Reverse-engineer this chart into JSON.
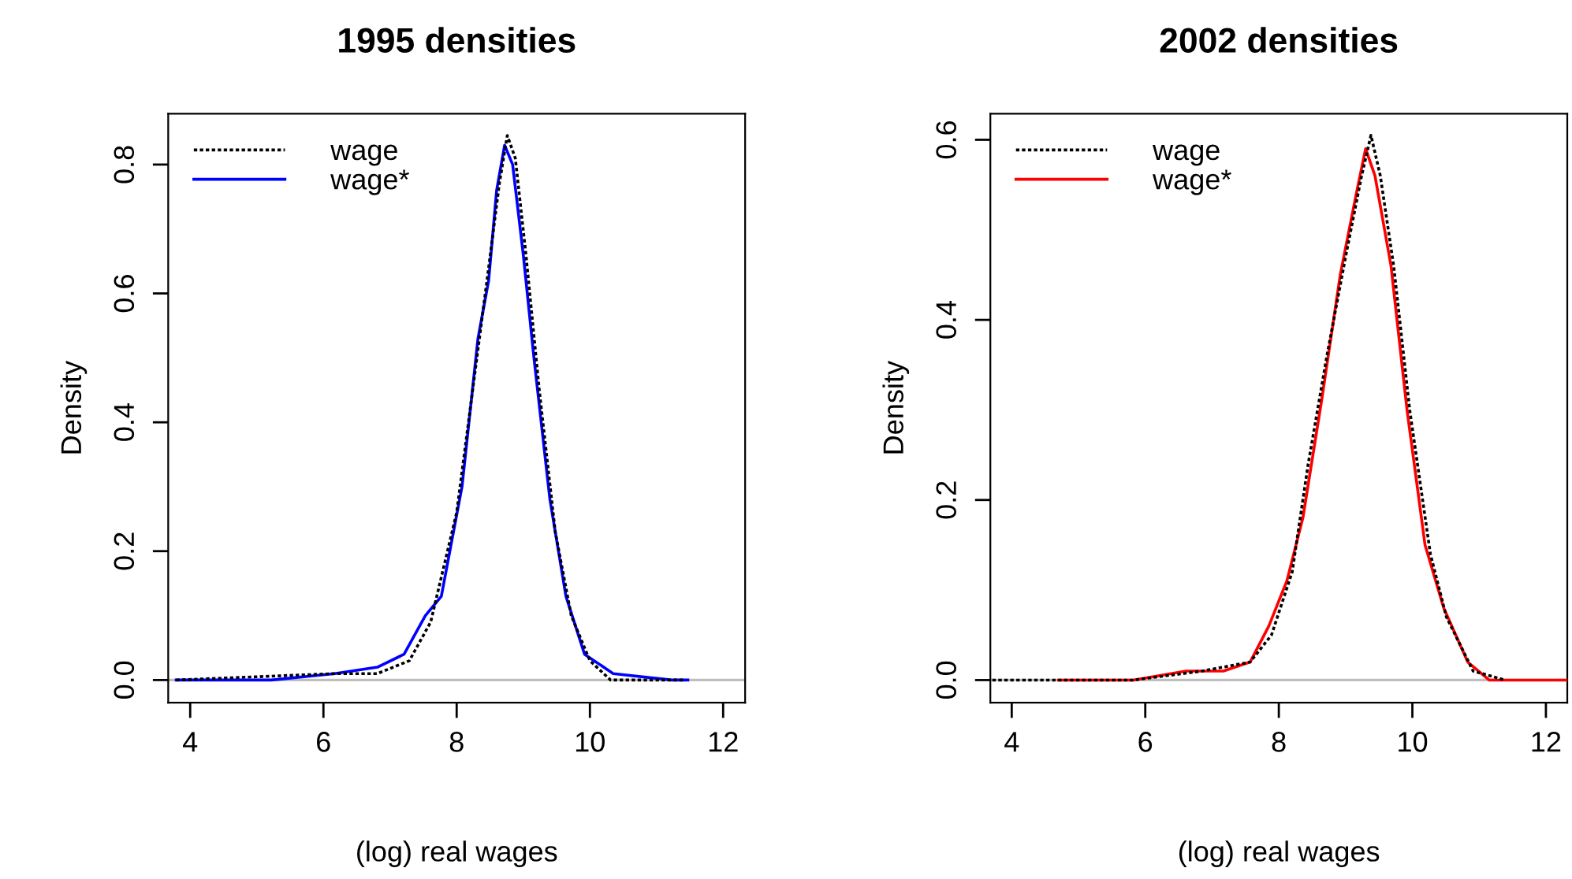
{
  "chart_data": [
    {
      "type": "line",
      "title": "1995 densities",
      "xlabel": "(log) real wages",
      "ylabel": "Density",
      "xlim": [
        3.67,
        12.33
      ],
      "ylim": [
        -0.035,
        0.879
      ],
      "xticks": [
        4,
        6,
        8,
        10,
        12
      ],
      "yticks": [
        {
          "value": 0,
          "label": "0.0"
        },
        0.2,
        0.4,
        0.6,
        0.8
      ],
      "grid": false,
      "legend": "top left",
      "marker": "none",
      "ref_lines": [
        {
          "axis": "y",
          "value": 0,
          "color": "#bebebe",
          "line_style": "solid"
        }
      ],
      "series": [
        {
          "name": "wage",
          "color": "#000000",
          "line_style": "dotted",
          "x": [
            3.79,
            6.17,
            6.81,
            7.29,
            7.61,
            8.0,
            8.24,
            8.48,
            8.64,
            8.76,
            8.88,
            9.04,
            9.24,
            9.48,
            9.72,
            10.0,
            10.31,
            11.43
          ],
          "values": [
            0,
            0.01,
            0.01,
            0.03,
            0.09,
            0.26,
            0.45,
            0.64,
            0.77,
            0.845,
            0.81,
            0.66,
            0.45,
            0.23,
            0.1,
            0.03,
            0.0,
            0.0
          ]
        },
        {
          "name": "wage*",
          "color": "#0000ff",
          "line_style": "solid",
          "x": [
            3.79,
            5.22,
            6.17,
            6.81,
            7.21,
            7.53,
            7.77,
            8.08,
            8.32,
            8.48,
            8.6,
            8.72,
            8.84,
            9.0,
            9.16,
            9.4,
            9.64,
            9.92,
            10.35,
            11.23,
            11.47
          ],
          "values": [
            0,
            0.0,
            0.01,
            0.02,
            0.04,
            0.1,
            0.13,
            0.3,
            0.53,
            0.62,
            0.76,
            0.83,
            0.8,
            0.66,
            0.5,
            0.28,
            0.13,
            0.04,
            0.01,
            0.0,
            0.0
          ]
        }
      ]
    },
    {
      "type": "line",
      "title": "2002 densities",
      "xlabel": "(log) real wages",
      "ylabel": "Density",
      "xlim": [
        3.68,
        12.32
      ],
      "ylim": [
        -0.025,
        0.629
      ],
      "xticks": [
        4,
        6,
        8,
        10,
        12
      ],
      "yticks": [
        {
          "value": 0,
          "label": "0.0"
        },
        0.2,
        0.4,
        0.6
      ],
      "grid": false,
      "legend": "top left",
      "marker": "none",
      "ref_lines": [
        {
          "axis": "y",
          "value": 0,
          "color": "#bebebe",
          "line_style": "solid"
        }
      ],
      "series": [
        {
          "name": "wage",
          "color": "#000000",
          "line_style": "dotted",
          "x": [
            3.71,
            5.82,
            6.85,
            7.57,
            7.89,
            8.2,
            8.44,
            8.72,
            9.0,
            9.24,
            9.38,
            9.52,
            9.72,
            9.96,
            10.27,
            10.51,
            10.91,
            11.39
          ],
          "values": [
            0,
            0.0,
            0.01,
            0.02,
            0.05,
            0.12,
            0.24,
            0.36,
            0.47,
            0.56,
            0.605,
            0.56,
            0.46,
            0.3,
            0.14,
            0.07,
            0.01,
            0.0
          ]
        },
        {
          "name": "wage*",
          "color": "#ff0000",
          "line_style": "solid",
          "x": [
            4.7,
            5.82,
            6.61,
            7.17,
            7.57,
            7.85,
            8.12,
            8.36,
            8.64,
            8.92,
            9.16,
            9.3,
            9.44,
            9.68,
            9.92,
            10.19,
            10.47,
            10.83,
            11.15,
            11.71,
            12.3
          ],
          "values": [
            0,
            0.0,
            0.01,
            0.01,
            0.02,
            0.06,
            0.11,
            0.18,
            0.31,
            0.45,
            0.54,
            0.59,
            0.56,
            0.46,
            0.3,
            0.15,
            0.08,
            0.02,
            0.0,
            0.0,
            0.0
          ]
        }
      ]
    }
  ]
}
